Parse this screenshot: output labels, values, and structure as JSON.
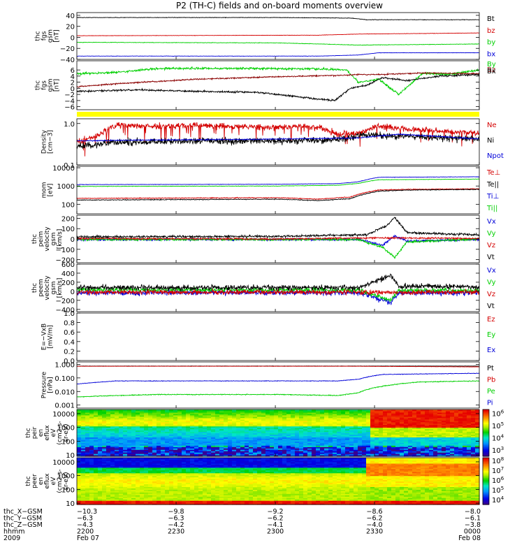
{
  "title": "P2 (TH-C) fields and on-board moments overview",
  "colors": {
    "black": "#000000",
    "red": "#d40000",
    "green": "#00d000",
    "blue": "#0000d8",
    "darkred": "#8b0000",
    "yellow": "#ffff00"
  },
  "chart_data": [
    {
      "type": "line",
      "ylabel": [
        "thc",
        "fgs",
        "gsm",
        "[nT]"
      ],
      "ylim": [
        -40,
        45
      ],
      "scale": "linear",
      "yticks": [
        {
          "v": 40,
          "t": "40"
        },
        {
          "v": 20,
          "t": "20"
        },
        {
          "v": 0,
          "t": "0"
        },
        {
          "v": -20,
          "t": "−20"
        },
        {
          "v": -40,
          "t": "−40"
        }
      ],
      "series": [
        {
          "name": "Bt",
          "color": "#000000",
          "noise": 0.3,
          "x": [
            0,
            0.5,
            0.68,
            0.72,
            0.8,
            1
          ],
          "y": [
            36,
            36,
            35,
            32,
            32,
            32
          ]
        },
        {
          "name": "bz",
          "color": "#d40000",
          "noise": 0.2,
          "x": [
            0,
            0.6,
            0.7,
            1
          ],
          "y": [
            3,
            4,
            6,
            8
          ]
        },
        {
          "name": "by",
          "color": "#00d000",
          "noise": 0.3,
          "x": [
            0,
            0.5,
            0.7,
            1
          ],
          "y": [
            -9,
            -10,
            -14,
            -12
          ]
        },
        {
          "name": "bx",
          "color": "#0000d8",
          "noise": 0.2,
          "x": [
            0,
            0.6,
            0.7,
            0.75,
            1
          ],
          "y": [
            -34,
            -34,
            -32,
            -28,
            -28
          ]
        }
      ]
    },
    {
      "type": "line",
      "ylabel": [
        "thc",
        "fgs",
        "gsm",
        "[nT]"
      ],
      "ylim": [
        -7,
        9
      ],
      "scale": "linear",
      "yticks": [
        {
          "v": 6,
          "t": "6"
        },
        {
          "v": 4,
          "t": "4"
        },
        {
          "v": 2,
          "t": "2"
        },
        {
          "v": 0,
          "t": "0"
        },
        {
          "v": -2,
          "t": "−2"
        },
        {
          "v": -4,
          "t": "−4"
        },
        {
          "v": -6,
          "t": "−6"
        }
      ],
      "series": [
        {
          "name": "By",
          "color": "#00d000",
          "noise": 0.25,
          "x": [
            0,
            0.1,
            0.2,
            0.3,
            0.45,
            0.6,
            0.67,
            0.7,
            0.75,
            0.8,
            0.86,
            0.92,
            1
          ],
          "y": [
            4.8,
            5.2,
            6.5,
            6.5,
            6.5,
            6.3,
            6,
            2,
            3,
            -2,
            5,
            4.5,
            6
          ]
        },
        {
          "name": "Bz",
          "color": "#8b0000",
          "noise": 0.15,
          "x": [
            0,
            0.1,
            0.3,
            0.5,
            0.65,
            0.7,
            0.75,
            0.85,
            1
          ],
          "y": [
            0.5,
            1.5,
            3,
            3.8,
            4.2,
            4.5,
            4.5,
            5,
            4.8
          ]
        },
        {
          "name": "Bx",
          "color": "#000000",
          "noise": 0.2,
          "x": [
            0,
            0.15,
            0.3,
            0.45,
            0.6,
            0.64,
            0.68,
            0.72,
            0.76,
            0.82,
            0.9,
            1
          ],
          "y": [
            -1,
            -0.5,
            -1,
            -1.3,
            -3.5,
            -4,
            0,
            1,
            3.5,
            2.5,
            4,
            4.5
          ]
        }
      ]
    },
    {
      "type": "line",
      "ylabel": [
        "Density",
        "[cm−3]"
      ],
      "ylim": [
        0.1,
        1.3
      ],
      "scale": "log",
      "yticks": [
        {
          "v": 1,
          "t": "1.0"
        },
        {
          "v": 0.1,
          "t": "0.1"
        }
      ],
      "series": [
        {
          "name": "Ne",
          "color": "#d40000",
          "noise": 0.05,
          "spike": 0.25,
          "x": [
            0,
            0.05,
            0.1,
            0.2,
            0.3,
            0.4,
            0.48,
            0.55,
            0.6,
            0.65,
            0.7,
            0.75,
            0.8,
            0.9,
            1
          ],
          "y": [
            0.35,
            0.5,
            0.9,
            0.85,
            0.9,
            0.85,
            0.8,
            0.85,
            0.8,
            0.55,
            0.6,
            0.85,
            0.75,
            0.65,
            0.6
          ]
        },
        {
          "name": "Ni",
          "color": "#000000",
          "noise": 0.06,
          "x": [
            0,
            0.1,
            0.3,
            0.5,
            0.65,
            0.72,
            0.78,
            0.85,
            1
          ],
          "y": [
            0.28,
            0.35,
            0.38,
            0.38,
            0.4,
            0.55,
            0.5,
            0.48,
            0.42
          ]
        },
        {
          "name": "Npot",
          "color": "#0000d8",
          "noise": 0.01,
          "x": [
            0,
            0.2,
            0.5,
            0.7,
            0.8,
            1
          ],
          "y": [
            0.38,
            0.4,
            0.42,
            0.45,
            0.55,
            0.42
          ]
        }
      ]
    },
    {
      "type": "line",
      "ylabel": [
        "mom",
        "[eV]"
      ],
      "ylim": [
        30,
        12000
      ],
      "scale": "log",
      "yticks": [
        {
          "v": 10000,
          "t": "10000"
        },
        {
          "v": 1000,
          "t": "1000"
        },
        {
          "v": 100,
          "t": "100"
        }
      ],
      "series": [
        {
          "name": "Te⊥",
          "color": "#d40000",
          "noise": 0.015,
          "x": [
            0,
            0.5,
            0.6,
            0.68,
            0.75,
            0.82,
            1
          ],
          "y": [
            210,
            230,
            190,
            250,
            600,
            650,
            700
          ]
        },
        {
          "name": "Te||",
          "color": "#000000",
          "noise": 0.015,
          "x": [
            0,
            0.5,
            0.6,
            0.68,
            0.75,
            0.82,
            1
          ],
          "y": [
            170,
            190,
            160,
            200,
            520,
            600,
            650
          ]
        },
        {
          "name": "Ti⊥",
          "color": "#0000d8",
          "noise": 0.008,
          "x": [
            0,
            0.5,
            0.65,
            0.7,
            0.75,
            1
          ],
          "y": [
            1200,
            1250,
            1350,
            1700,
            3000,
            3200
          ]
        },
        {
          "name": "Ti||",
          "color": "#00d000",
          "noise": 0.008,
          "x": [
            0,
            0.5,
            0.65,
            0.7,
            0.75,
            1
          ],
          "y": [
            950,
            1000,
            1100,
            1400,
            2200,
            2400
          ]
        }
      ]
    },
    {
      "type": "line",
      "ylabel": [
        "thc",
        "peim",
        "velocity",
        "gsm",
        "[km/s]"
      ],
      "ylim": [
        -230,
        230
      ],
      "scale": "linear",
      "yticks": [
        {
          "v": 200,
          "t": "200"
        },
        {
          "v": 100,
          "t": "100"
        },
        {
          "v": 0,
          "t": "0"
        },
        {
          "v": -100,
          "t": "−100"
        },
        {
          "v": -200,
          "t": "−200"
        }
      ],
      "series": [
        {
          "name": "Vx",
          "color": "#0000d8",
          "noise": 8,
          "x": [
            0,
            0.7,
            0.76,
            0.79,
            0.82,
            1
          ],
          "y": [
            -5,
            -5,
            -60,
            30,
            -20,
            -5
          ]
        },
        {
          "name": "Vy",
          "color": "#00d000",
          "noise": 8,
          "x": [
            0,
            0.7,
            0.76,
            0.79,
            0.82,
            1
          ],
          "y": [
            -5,
            -5,
            -80,
            -180,
            -30,
            0
          ]
        },
        {
          "name": "Vz",
          "color": "#d40000",
          "noise": 6,
          "x": [
            0,
            0.5,
            0.75,
            1
          ],
          "y": [
            5,
            0,
            10,
            5
          ]
        },
        {
          "name": "Vt",
          "color": "#000000",
          "noise": 8,
          "x": [
            0,
            0.5,
            0.72,
            0.77,
            0.79,
            0.82,
            1
          ],
          "y": [
            20,
            25,
            40,
            130,
            210,
            60,
            40
          ]
        }
      ]
    },
    {
      "type": "line",
      "ylabel": [
        "thc",
        "peem",
        "velocity",
        "gsm",
        "[km/s]"
      ],
      "ylim": [
        -450,
        600
      ],
      "scale": "linear",
      "yticks": [
        {
          "v": 600,
          "t": "600"
        },
        {
          "v": 400,
          "t": "400"
        },
        {
          "v": 200,
          "t": "200"
        },
        {
          "v": 0,
          "t": "0"
        },
        {
          "v": -200,
          "t": "−200"
        },
        {
          "v": -400,
          "t": "−400"
        }
      ],
      "series": [
        {
          "name": "Vx",
          "color": "#0000d8",
          "noise": 40,
          "x": [
            0,
            0.7,
            0.78,
            0.8,
            1
          ],
          "y": [
            -30,
            -30,
            -250,
            -40,
            -30
          ]
        },
        {
          "name": "Vy",
          "color": "#00d000",
          "noise": 35,
          "x": [
            0,
            0.7,
            0.78,
            0.8,
            1
          ],
          "y": [
            30,
            30,
            -200,
            20,
            20
          ]
        },
        {
          "name": "Vz",
          "color": "#d40000",
          "noise": 35,
          "x": [
            0,
            1
          ],
          "y": [
            -20,
            -20
          ]
        },
        {
          "name": "Vt",
          "color": "#000000",
          "noise": 40,
          "x": [
            0,
            0.7,
            0.78,
            0.8,
            1
          ],
          "y": [
            80,
            80,
            350,
            120,
            100
          ]
        }
      ]
    },
    {
      "type": "line",
      "ylabel": [
        "E=−VxB",
        "[mV/m]"
      ],
      "ylim": [
        0,
        1
      ],
      "scale": "linear",
      "yticks": [
        {
          "v": 1,
          "t": "1.0"
        },
        {
          "v": 0.8,
          "t": "0.8"
        },
        {
          "v": 0.6,
          "t": "0.6"
        },
        {
          "v": 0.4,
          "t": "0.4"
        },
        {
          "v": 0.2,
          "t": "0.2"
        },
        {
          "v": 0,
          "t": "0.0"
        }
      ],
      "series": [
        {
          "name": "Ez",
          "color": "#d40000",
          "x": [],
          "y": []
        },
        {
          "name": "Ey",
          "color": "#00d000",
          "x": [],
          "y": []
        },
        {
          "name": "Ex",
          "color": "#0000d8",
          "x": [],
          "y": []
        }
      ]
    },
    {
      "type": "line",
      "ylabel": [
        "Pressure",
        "[nPa]"
      ],
      "ylim": [
        0.0006,
        1.5
      ],
      "scale": "log",
      "yticks": [
        {
          "v": 1,
          "t": "1.000"
        },
        {
          "v": 0.1,
          "t": "0.100"
        },
        {
          "v": 0.01,
          "t": "0.010"
        },
        {
          "v": 0.001,
          "t": "0.001"
        }
      ],
      "series": [
        {
          "name": "Pt",
          "color": "#000000",
          "noise": 0.005,
          "x": [
            0,
            1
          ],
          "y": [
            0.75,
            0.75
          ]
        },
        {
          "name": "Pb",
          "color": "#d40000",
          "noise": 0.005,
          "x": [
            0,
            0.7,
            1
          ],
          "y": [
            0.72,
            0.72,
            0.65
          ]
        },
        {
          "name": "Pe",
          "color": "#00d000",
          "noise": 0.02,
          "x": [
            0,
            0.2,
            0.5,
            0.65,
            0.7,
            0.78,
            0.85,
            1
          ],
          "y": [
            0.004,
            0.006,
            0.006,
            0.005,
            0.008,
            0.03,
            0.05,
            0.06
          ]
        },
        {
          "name": "Pi",
          "color": "#0000d8",
          "noise": 0.015,
          "x": [
            0,
            0.1,
            0.5,
            0.65,
            0.7,
            0.76,
            1
          ],
          "y": [
            0.035,
            0.06,
            0.06,
            0.06,
            0.08,
            0.18,
            0.22
          ]
        }
      ]
    },
    {
      "type": "heatmap",
      "ylabel": [
        "thc",
        "peir",
        "en",
        "eflux",
        "eV",
        "(cm2-s-",
        "sr-eV)"
      ],
      "ylim": [
        8,
        20000
      ],
      "scale": "log",
      "yticks": [
        {
          "v": 10000,
          "t": "10000"
        },
        {
          "v": 1000,
          "t": "1000"
        },
        {
          "v": 100,
          "t": "100"
        },
        {
          "v": 10,
          "t": "10"
        }
      ],
      "colorbar_ticks": [
        {
          "e": 6,
          "t": "10"
        },
        {
          "e": 5,
          "t": "10"
        },
        {
          "e": 4,
          "t": "10"
        },
        {
          "e": 3,
          "t": "10"
        }
      ],
      "clim": [
        2.5,
        6.3
      ]
    },
    {
      "type": "heatmap",
      "ylabel": [
        "thc",
        "peer",
        "en",
        "eflux",
        "eV",
        "(cm2-s-",
        "sr-eV)"
      ],
      "ylim": [
        8,
        20000
      ],
      "scale": "log",
      "yticks": [
        {
          "v": 10000,
          "t": "10000"
        },
        {
          "v": 1000,
          "t": "1000"
        },
        {
          "v": 100,
          "t": "100"
        },
        {
          "v": 10,
          "t": "10"
        }
      ],
      "colorbar_ticks": [
        {
          "e": 8,
          "t": "10"
        },
        {
          "e": 7,
          "t": "10"
        },
        {
          "e": 6,
          "t": "10"
        },
        {
          "e": 5,
          "t": "10"
        },
        {
          "e": 4,
          "t": "10"
        }
      ],
      "clim": [
        3.5,
        8.3
      ]
    }
  ],
  "x_axis": {
    "tick_fracs": [
      0,
      0.2466,
      0.4932,
      0.7397,
      1
    ],
    "rows": [
      {
        "label": "thc_X−GSM",
        "values": [
          "−10.3",
          "−9.8",
          "−9.2",
          "−8.6",
          "−8.0"
        ]
      },
      {
        "label": "thc_Y−GSM",
        "values": [
          "−6.3",
          "−6.3",
          "−6.2",
          "−6.2",
          "−6.1"
        ]
      },
      {
        "label": "thc_Z−GSM",
        "values": [
          "−4.3",
          "−4.2",
          "−4.1",
          "−4.0",
          "−3.8"
        ]
      },
      {
        "label": "hhmm",
        "values": [
          "2200",
          "2230",
          "2300",
          "2330",
          "0000"
        ]
      },
      {
        "label": "2009",
        "values": [
          "Feb 07",
          "",
          "",
          "",
          "Feb 08"
        ]
      }
    ]
  }
}
